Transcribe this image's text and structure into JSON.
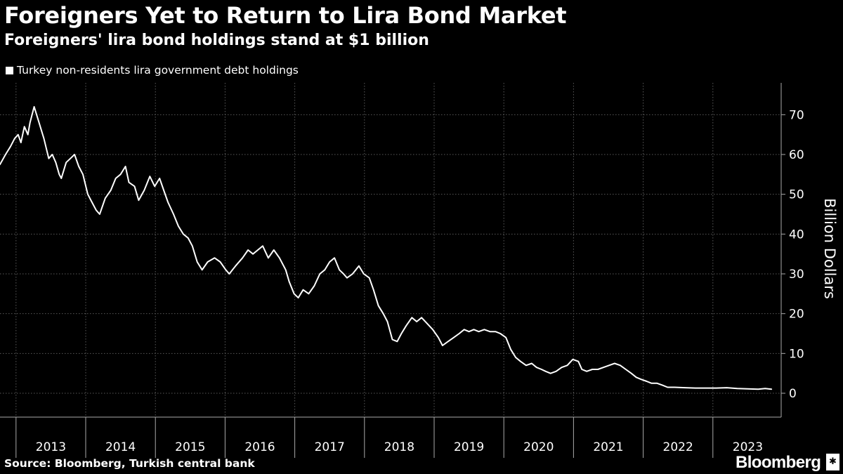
{
  "chart_data": {
    "type": "line",
    "title": "Foreigners Yet to Return to Lira Bond Market",
    "subtitle": "Foreigners' lira bond holdings stand at $1 billion",
    "xlabel": "",
    "ylabel": "Billion Dollars",
    "ylim": [
      -6,
      78
    ],
    "yticks": [
      0,
      10,
      20,
      30,
      40,
      50,
      60,
      70
    ],
    "xlim": [
      2012.77,
      2023.98
    ],
    "x_tick_labels": [
      "2013",
      "2014",
      "2015",
      "2016",
      "2017",
      "2018",
      "2019",
      "2020",
      "2021",
      "2022",
      "2023"
    ],
    "legend_position": "top-left",
    "series": [
      {
        "name": "Turkey non-residents lira government debt holdings",
        "color": "#ffffff",
        "points": [
          [
            2012.77,
            57.5
          ],
          [
            2012.85,
            60
          ],
          [
            2012.92,
            62
          ],
          [
            2012.98,
            64
          ],
          [
            2013.03,
            65
          ],
          [
            2013.07,
            63
          ],
          [
            2013.12,
            67
          ],
          [
            2013.17,
            65
          ],
          [
            2013.2,
            68
          ],
          [
            2013.26,
            72
          ],
          [
            2013.33,
            68
          ],
          [
            2013.4,
            64
          ],
          [
            2013.47,
            59
          ],
          [
            2013.52,
            60
          ],
          [
            2013.57,
            58
          ],
          [
            2013.62,
            55
          ],
          [
            2013.65,
            54
          ],
          [
            2013.72,
            58
          ],
          [
            2013.78,
            59
          ],
          [
            2013.84,
            60
          ],
          [
            2013.9,
            57
          ],
          [
            2013.96,
            55
          ],
          [
            2014.03,
            50
          ],
          [
            2014.09,
            48
          ],
          [
            2014.15,
            46
          ],
          [
            2014.2,
            45
          ],
          [
            2014.28,
            49
          ],
          [
            2014.36,
            51
          ],
          [
            2014.43,
            54
          ],
          [
            2014.5,
            55
          ],
          [
            2014.57,
            57
          ],
          [
            2014.62,
            53
          ],
          [
            2014.7,
            52
          ],
          [
            2014.76,
            48.5
          ],
          [
            2014.84,
            51
          ],
          [
            2014.92,
            54.5
          ],
          [
            2014.99,
            52
          ],
          [
            2015.06,
            54
          ],
          [
            2015.12,
            51
          ],
          [
            2015.18,
            48
          ],
          [
            2015.26,
            45
          ],
          [
            2015.33,
            42
          ],
          [
            2015.4,
            40
          ],
          [
            2015.47,
            39
          ],
          [
            2015.53,
            37
          ],
          [
            2015.6,
            33
          ],
          [
            2015.67,
            31
          ],
          [
            2015.75,
            33
          ],
          [
            2015.85,
            34
          ],
          [
            2015.93,
            33
          ],
          [
            2016.01,
            31
          ],
          [
            2016.06,
            30
          ],
          [
            2016.15,
            32
          ],
          [
            2016.25,
            34
          ],
          [
            2016.33,
            36
          ],
          [
            2016.4,
            35
          ],
          [
            2016.47,
            36
          ],
          [
            2016.54,
            37
          ],
          [
            2016.62,
            34
          ],
          [
            2016.7,
            36
          ],
          [
            2016.78,
            34
          ],
          [
            2016.87,
            31
          ],
          [
            2016.92,
            28
          ],
          [
            2016.99,
            25
          ],
          [
            2017.05,
            24
          ],
          [
            2017.12,
            26
          ],
          [
            2017.2,
            25
          ],
          [
            2017.28,
            27
          ],
          [
            2017.36,
            30
          ],
          [
            2017.43,
            31
          ],
          [
            2017.5,
            33
          ],
          [
            2017.57,
            34
          ],
          [
            2017.64,
            31
          ],
          [
            2017.7,
            30
          ],
          [
            2017.75,
            29
          ],
          [
            2017.83,
            30
          ],
          [
            2017.92,
            32
          ],
          [
            2017.99,
            30
          ],
          [
            2018.07,
            29
          ],
          [
            2018.13,
            26
          ],
          [
            2018.2,
            22
          ],
          [
            2018.27,
            20
          ],
          [
            2018.33,
            18
          ],
          [
            2018.4,
            13.5
          ],
          [
            2018.47,
            13
          ],
          [
            2018.53,
            15
          ],
          [
            2018.6,
            17
          ],
          [
            2018.68,
            19
          ],
          [
            2018.75,
            18
          ],
          [
            2018.82,
            19
          ],
          [
            2018.9,
            17.5
          ],
          [
            2018.98,
            16
          ],
          [
            2019.06,
            14
          ],
          [
            2019.12,
            12
          ],
          [
            2019.2,
            13
          ],
          [
            2019.28,
            14
          ],
          [
            2019.36,
            15
          ],
          [
            2019.43,
            16
          ],
          [
            2019.5,
            15.5
          ],
          [
            2019.57,
            16
          ],
          [
            2019.64,
            15.5
          ],
          [
            2019.72,
            16
          ],
          [
            2019.8,
            15.5
          ],
          [
            2019.88,
            15.5
          ],
          [
            2019.95,
            15
          ],
          [
            2020.03,
            14
          ],
          [
            2020.1,
            11
          ],
          [
            2020.17,
            9
          ],
          [
            2020.24,
            8
          ],
          [
            2020.32,
            7
          ],
          [
            2020.4,
            7.5
          ],
          [
            2020.47,
            6.5
          ],
          [
            2020.54,
            6
          ],
          [
            2020.6,
            5.5
          ],
          [
            2020.67,
            5
          ],
          [
            2020.75,
            5.5
          ],
          [
            2020.83,
            6.5
          ],
          [
            2020.91,
            7
          ],
          [
            2020.99,
            8.5
          ],
          [
            2021.07,
            8
          ],
          [
            2021.12,
            6
          ],
          [
            2021.19,
            5.5
          ],
          [
            2021.27,
            6
          ],
          [
            2021.35,
            6
          ],
          [
            2021.43,
            6.5
          ],
          [
            2021.51,
            7
          ],
          [
            2021.59,
            7.5
          ],
          [
            2021.67,
            7
          ],
          [
            2021.75,
            6
          ],
          [
            2021.83,
            5
          ],
          [
            2021.9,
            4
          ],
          [
            2021.97,
            3.5
          ],
          [
            2022.05,
            3
          ],
          [
            2022.12,
            2.5
          ],
          [
            2022.2,
            2.5
          ],
          [
            2022.28,
            2
          ],
          [
            2022.35,
            1.5
          ],
          [
            2022.45,
            1.5
          ],
          [
            2022.6,
            1.4
          ],
          [
            2022.75,
            1.3
          ],
          [
            2022.9,
            1.3
          ],
          [
            2023.05,
            1.3
          ],
          [
            2023.2,
            1.4
          ],
          [
            2023.35,
            1.2
          ],
          [
            2023.5,
            1.1
          ],
          [
            2023.65,
            1.0
          ],
          [
            2023.75,
            1.2
          ],
          [
            2023.84,
            1.0
          ]
        ]
      }
    ]
  },
  "footer": {
    "source": "Source: Bloomberg, Turkish central bank",
    "brand": "Bloomberg",
    "badge": "✱"
  }
}
